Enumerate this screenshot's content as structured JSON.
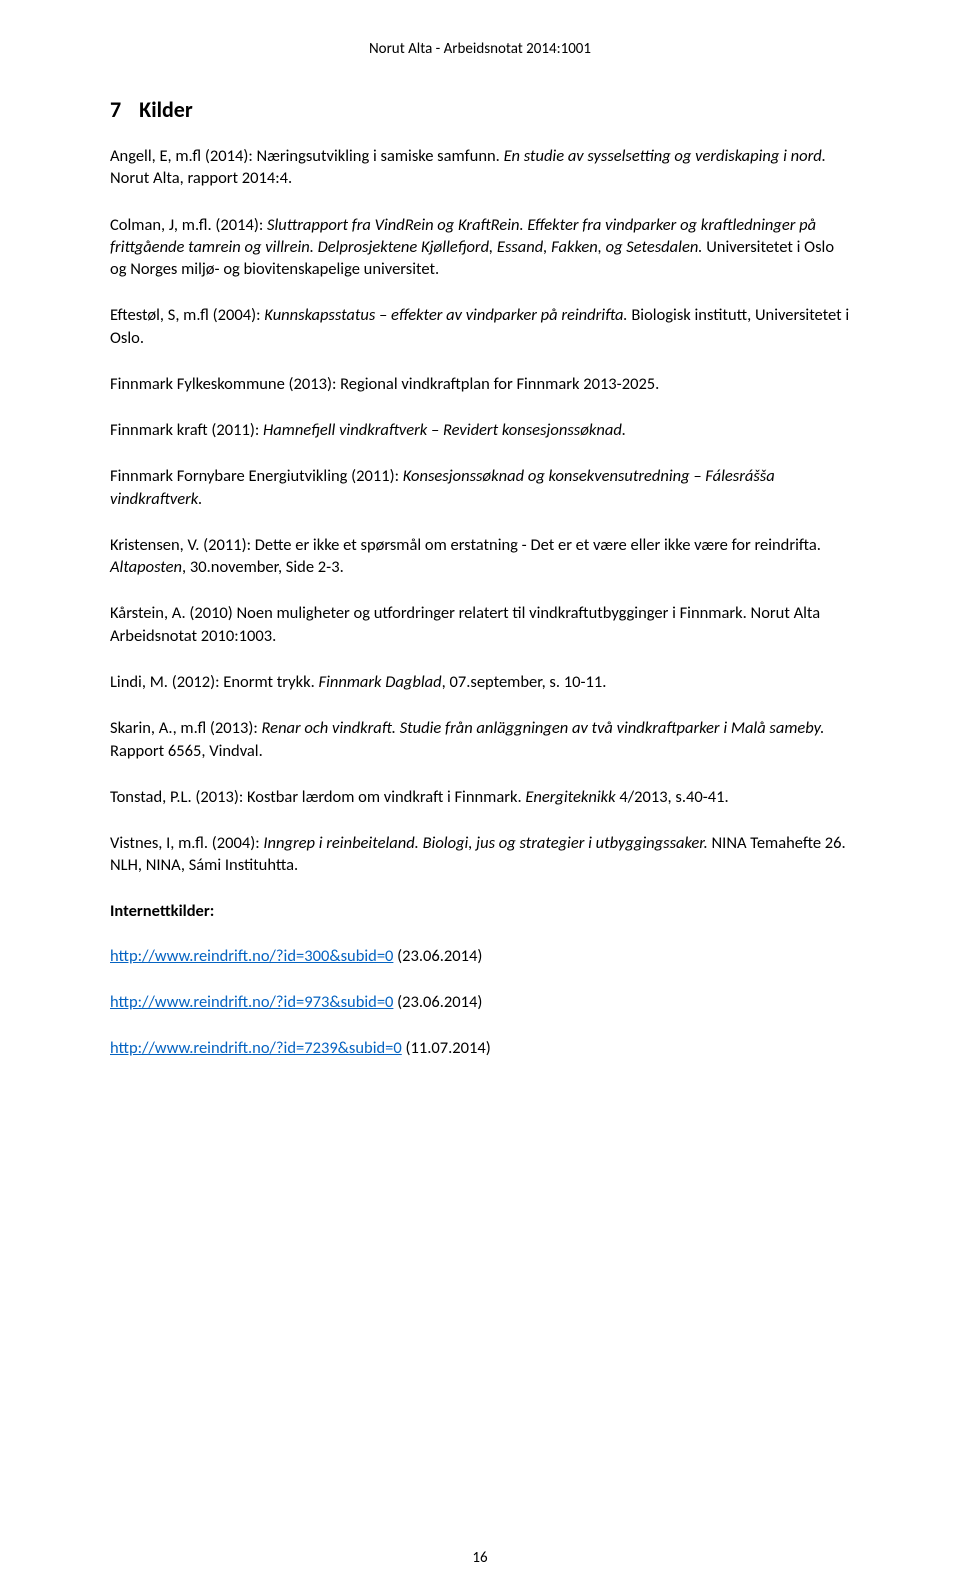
{
  "header": "Norut Alta - Arbeidsnotat 2014:1001",
  "section_number": "7",
  "section_title": "Kilder",
  "refs": {
    "r1a": "Angell, E, m.fl (2014): Næringsutvikling i samiske samfunn. ",
    "r1b": "En studie av sysselsetting og verdiskaping i nord. ",
    "r1c": "Norut Alta, rapport 2014:4.",
    "r2a": "Colman, J, m.fl. (2014): ",
    "r2b": "Sluttrapport fra VindRein og KraftRein. Effekter fra vindparker og kraftledninger på frittgående tamrein og villrein. Delprosjektene Kjøllefjord, Essand, Fakken, og Setesdalen. ",
    "r2c": "Universitetet i Oslo og Norges miljø- og biovitenskapelige universitet.",
    "r3a": "Eftestøl, S, m.fl (2004): ",
    "r3b": "Kunnskapsstatus – effekter av vindparker på reindrifta. ",
    "r3c": "Biologisk institutt, Universitetet i Oslo.",
    "r4": "Finnmark Fylkeskommune (2013):  Regional vindkraftplan for Finnmark 2013-2025.",
    "r5a": "Finnmark kraft (2011): ",
    "r5b": "Hamnefjell vindkraftverk – Revidert konsesjonssøknad.",
    "r6a": "Finnmark Fornybare Energiutvikling (2011): ",
    "r6b": "Konsesjonssøknad og konsekvensutredning – Fálesrášša vindkraftverk.",
    "r7a": "Kristensen, V. (2011): Dette er ikke et spørsmål om erstatning - Det er et være eller ikke være for reindrifta. ",
    "r7b": "Altaposten",
    "r7c": ", 30.november, Side 2-3.",
    "r8": "Kårstein, A. (2010) Noen muligheter og utfordringer relatert til vindkraftutbygginger i Finnmark. Norut Alta Arbeidsnotat 2010:1003.",
    "r9a": "Lindi, M. (2012): Enormt trykk. ",
    "r9b": "Finnmark Dagblad",
    "r9c": ", 07.september, s. 10-11.",
    "r10a": "Skarin, A., m.fl (2013): ",
    "r10b": "Renar och vindkraft. Studie från anläggningen av två vindkraftparker i Malå sameby. ",
    "r10c": "Rapport 6565, Vindval.",
    "r11a": "Tonstad, P.L. (2013): Kostbar lærdom om vindkraft i Finnmark. ",
    "r11b": "Energiteknikk",
    "r11c": " 4/2013, s.40-41.",
    "r12a": "Vistnes, I, m.fl. (2004): ",
    "r12b": "Inngrep i reinbeiteland. Biologi, jus og strategier i utbyggingssaker. ",
    "r12c": "NINA Temahefte 26. NLH, NINA, Sámi Instituhtta.",
    "subhead": "Internettkilder:",
    "link1": "http://www.reindrift.no/?id=300&subid=0",
    "link1_date": " (23.06.2014)",
    "link2": "http://www.reindrift.no/?id=973&subid=0",
    "link2_date": " (23.06.2014)",
    "link3": "http://www.reindrift.no/?id=7239&subid=0",
    "link3_date": " (11.07.2014)"
  },
  "page_number": "16"
}
